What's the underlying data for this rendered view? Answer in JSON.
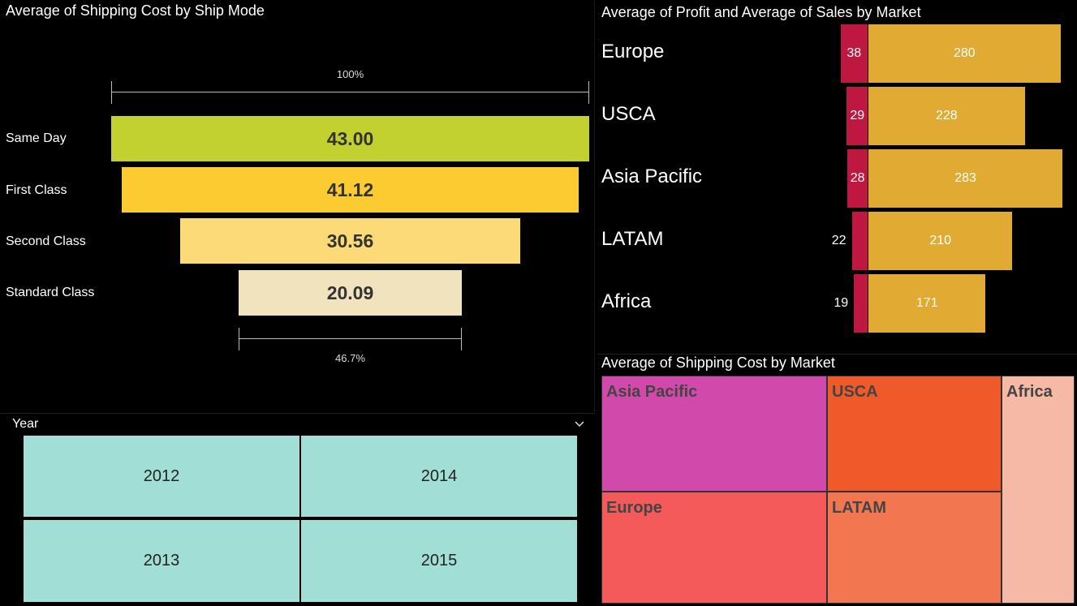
{
  "funnel": {
    "title": "Average of Shipping Cost by Ship Mode",
    "top_pct": "100%",
    "bottom_pct": "46.7%",
    "stages": [
      {
        "label": "Same Day",
        "value": 43.0,
        "display": "43.00",
        "color": "#c2d12f"
      },
      {
        "label": "First Class",
        "value": 41.12,
        "display": "41.12",
        "color": "#fbcb31"
      },
      {
        "label": "Second Class",
        "value": 30.56,
        "display": "30.56",
        "color": "#fcda77"
      },
      {
        "label": "Standard Class",
        "value": 20.09,
        "display": "20.09",
        "color": "#f1e3be"
      }
    ]
  },
  "slicer": {
    "title": "Year",
    "years": [
      "2012",
      "2014",
      "2013",
      "2015"
    ]
  },
  "profit_sales": {
    "title": "Average of Profit and Average of Sales by Market",
    "profit_color": "#be1740",
    "sales_color": "#e0aa33",
    "markets": [
      {
        "name": "Europe",
        "profit": 38,
        "sales": 280
      },
      {
        "name": "USCA",
        "profit": 29,
        "sales": 228
      },
      {
        "name": "Asia Pacific",
        "profit": 28,
        "sales": 283
      },
      {
        "name": "LATAM",
        "profit": 22,
        "sales": 210
      },
      {
        "name": "Africa",
        "profit": 19,
        "sales": 171
      }
    ]
  },
  "treemap": {
    "title": "Average of Shipping Cost by Market",
    "tiles": [
      {
        "name": "Asia Pacific",
        "color": "#d14aab"
      },
      {
        "name": "USCA",
        "color": "#f05a2b"
      },
      {
        "name": "Africa",
        "color": "#f6b9a6"
      },
      {
        "name": "Europe",
        "color": "#f55a5a"
      },
      {
        "name": "LATAM",
        "color": "#f27751"
      }
    ]
  },
  "chart_data": [
    {
      "type": "bar",
      "title": "Average of Shipping Cost by Ship Mode",
      "categories": [
        "Same Day",
        "First Class",
        "Second Class",
        "Standard Class"
      ],
      "values": [
        43.0,
        41.12,
        30.56,
        20.09
      ]
    },
    {
      "type": "bar",
      "title": "Average of Profit and Average of Sales by Market",
      "categories": [
        "Europe",
        "USCA",
        "Asia Pacific",
        "LATAM",
        "Africa"
      ],
      "series": [
        {
          "values": [
            38,
            29,
            28,
            22,
            19
          ]
        },
        {
          "values": [
            280,
            228,
            283,
            210,
            171
          ]
        }
      ]
    }
  ]
}
